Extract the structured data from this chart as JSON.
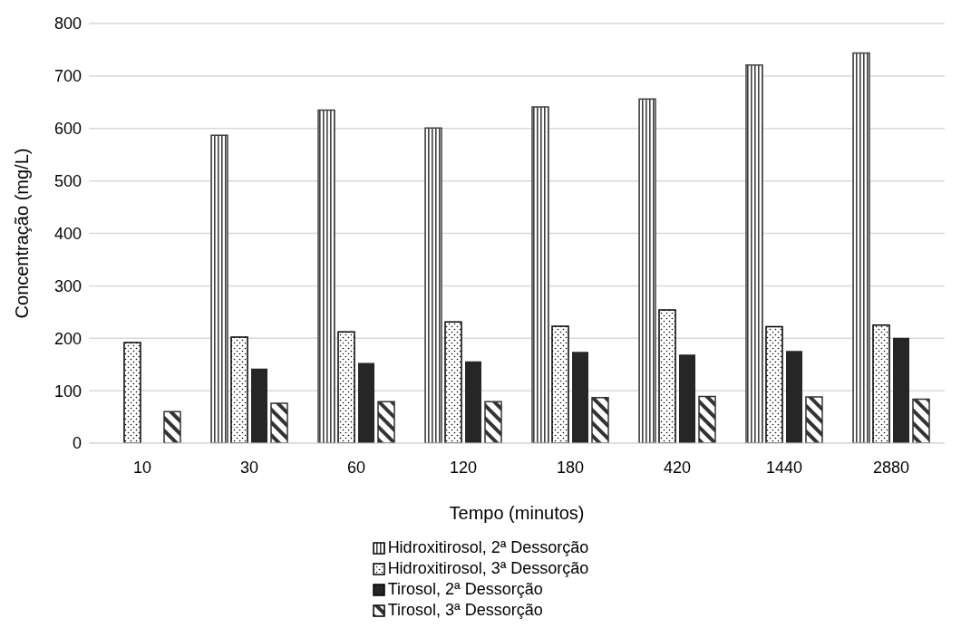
{
  "chart_data": {
    "type": "bar",
    "xlabel": "Tempo (minutos)",
    "ylabel": "Concentração (mg/L)",
    "categories": [
      "10",
      "30",
      "60",
      "120",
      "180",
      "420",
      "1440",
      "2880"
    ],
    "series": [
      {
        "name": "Hidroxitirosol, 2ª Dessorção",
        "color": "#404040",
        "values": [
          null,
          587,
          635,
          601,
          641,
          656,
          721,
          744
        ]
      },
      {
        "name": "Hidroxitirosol, 3ª Dessorção",
        "color": "#000000",
        "values": [
          192,
          202,
          212,
          231,
          223,
          254,
          222,
          225
        ]
      },
      {
        "name": "Tirosol, 2ª Dessorção",
        "color": "#262626",
        "values": [
          null,
          142,
          153,
          156,
          174,
          169,
          176,
          201
        ]
      },
      {
        "name": "Tirosol, 3ª Dessorção",
        "color": "#333333",
        "values": [
          60,
          76,
          79,
          79,
          87,
          89,
          88,
          84
        ]
      }
    ],
    "ylim": [
      0,
      800
    ],
    "yticks": [
      0,
      100,
      200,
      300,
      400,
      500,
      600,
      700,
      800
    ],
    "grid": "y",
    "legend": "bottom"
  }
}
